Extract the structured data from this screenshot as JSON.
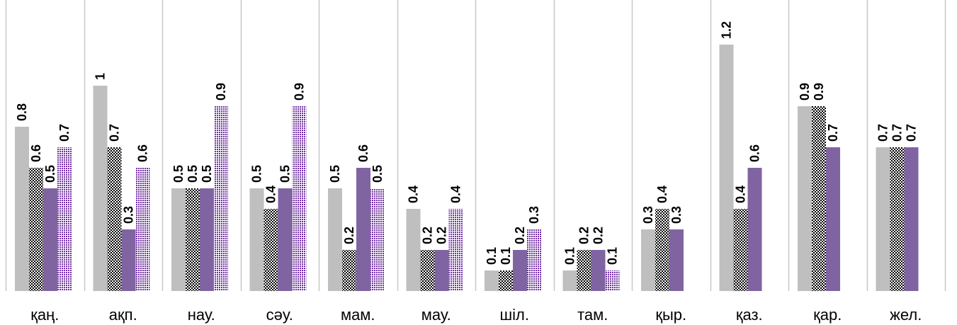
{
  "chart_data": {
    "type": "bar",
    "categories": [
      "қаң.",
      "ақп.",
      "нау.",
      "сәу.",
      "мам.",
      "мау.",
      "шіл.",
      "там.",
      "қыр.",
      "қаз.",
      "қар.",
      "жел."
    ],
    "series": [
      {
        "values": [
          0.8,
          1,
          0.5,
          0.5,
          0.5,
          0.4,
          0.1,
          0.1,
          0.3,
          1.2,
          0.9,
          0.7
        ],
        "fill": "solid",
        "color": "#bfbfbf"
      },
      {
        "values": [
          0.6,
          0.7,
          0.5,
          0.4,
          0.2,
          0.2,
          0.1,
          0.2,
          0.4,
          0.4,
          0.9,
          0.7
        ],
        "fill": "checker",
        "color": "#000000"
      },
      {
        "values": [
          0.5,
          0.3,
          0.5,
          0.5,
          0.6,
          0.2,
          0.2,
          0.2,
          0.3,
          0.6,
          0.7,
          0.7
        ],
        "fill": "solid",
        "color": "#8064a2"
      },
      {
        "values": [
          0.7,
          0.6,
          0.9,
          0.9,
          0.5,
          0.4,
          0.3,
          0.1,
          null,
          null,
          null,
          null
        ],
        "fill": "dotted",
        "color": "#7030a0"
      }
    ],
    "ylim": [
      0,
      1.4
    ],
    "grid": "vertical separators",
    "legend": "none",
    "data_labels": "rotated vertical, bold"
  }
}
